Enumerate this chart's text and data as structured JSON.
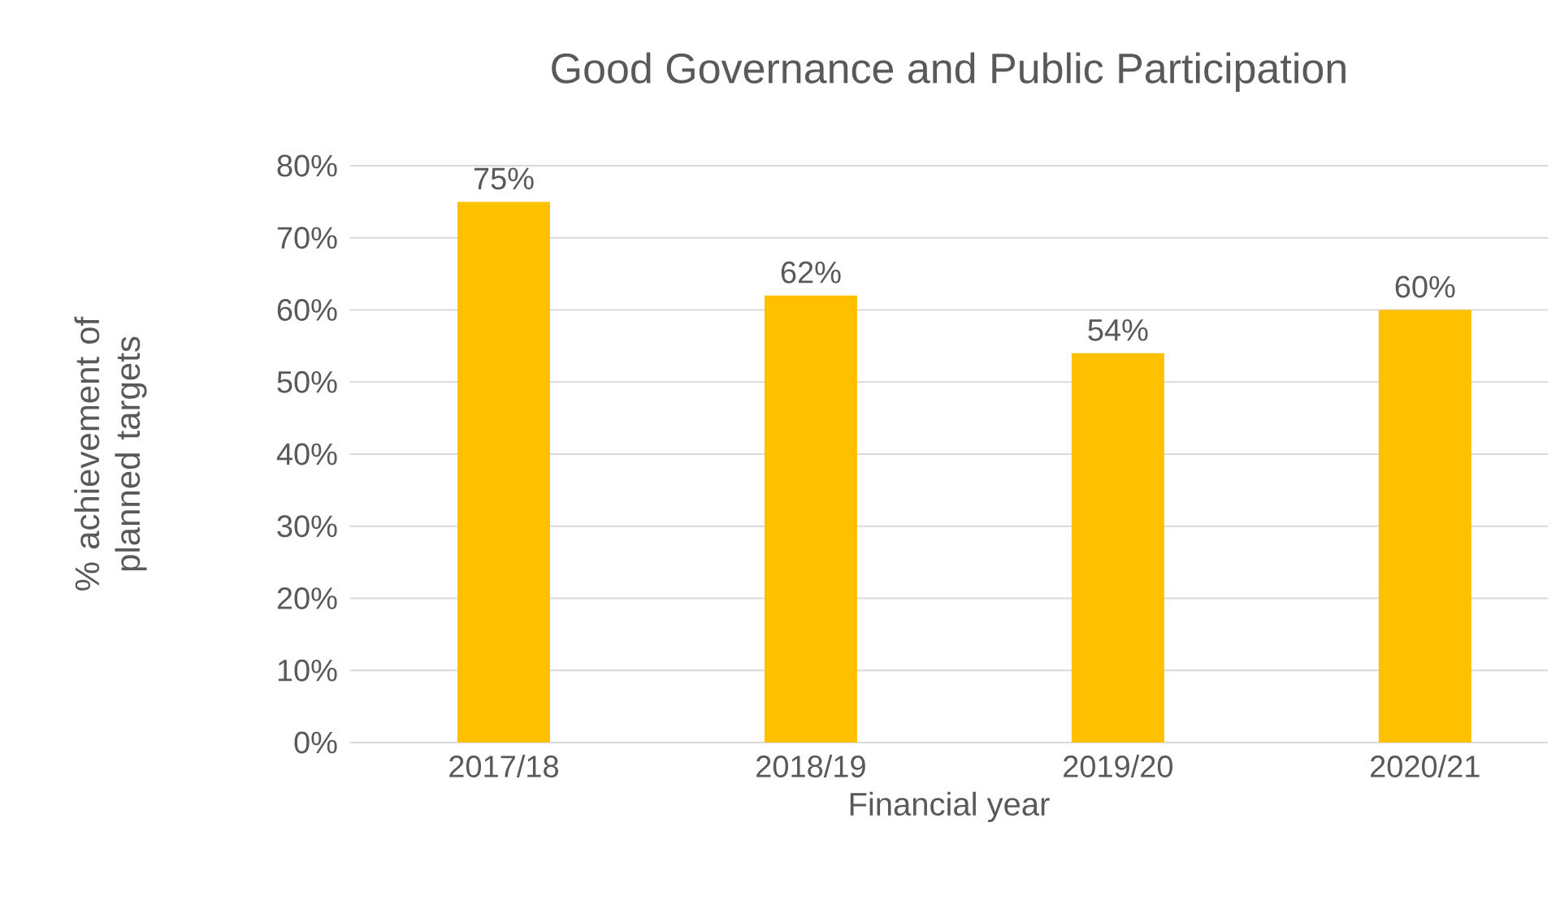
{
  "chart_data": {
    "type": "bar",
    "title": "Good Governance and Public Participation",
    "xlabel": "Financial year",
    "ylabel": "% achievement of planned targets",
    "categories": [
      "2017/18",
      "2018/19",
      "2019/20",
      "2020/21"
    ],
    "values": [
      75,
      62,
      54,
      60
    ],
    "value_labels": [
      "75%",
      "62%",
      "54%",
      "60%"
    ],
    "color": "#ffc000",
    "ylim": [
      0,
      80
    ],
    "yticks": [
      {
        "value": 0,
        "label": "0%"
      },
      {
        "value": 10,
        "label": "10%"
      },
      {
        "value": 20,
        "label": "20%"
      },
      {
        "value": 30,
        "label": "30%"
      },
      {
        "value": 40,
        "label": "40%"
      },
      {
        "value": 50,
        "label": "50%"
      },
      {
        "value": 60,
        "label": "60%"
      },
      {
        "value": 70,
        "label": "70%"
      },
      {
        "value": 80,
        "label": "80%"
      }
    ],
    "grid": "y"
  }
}
